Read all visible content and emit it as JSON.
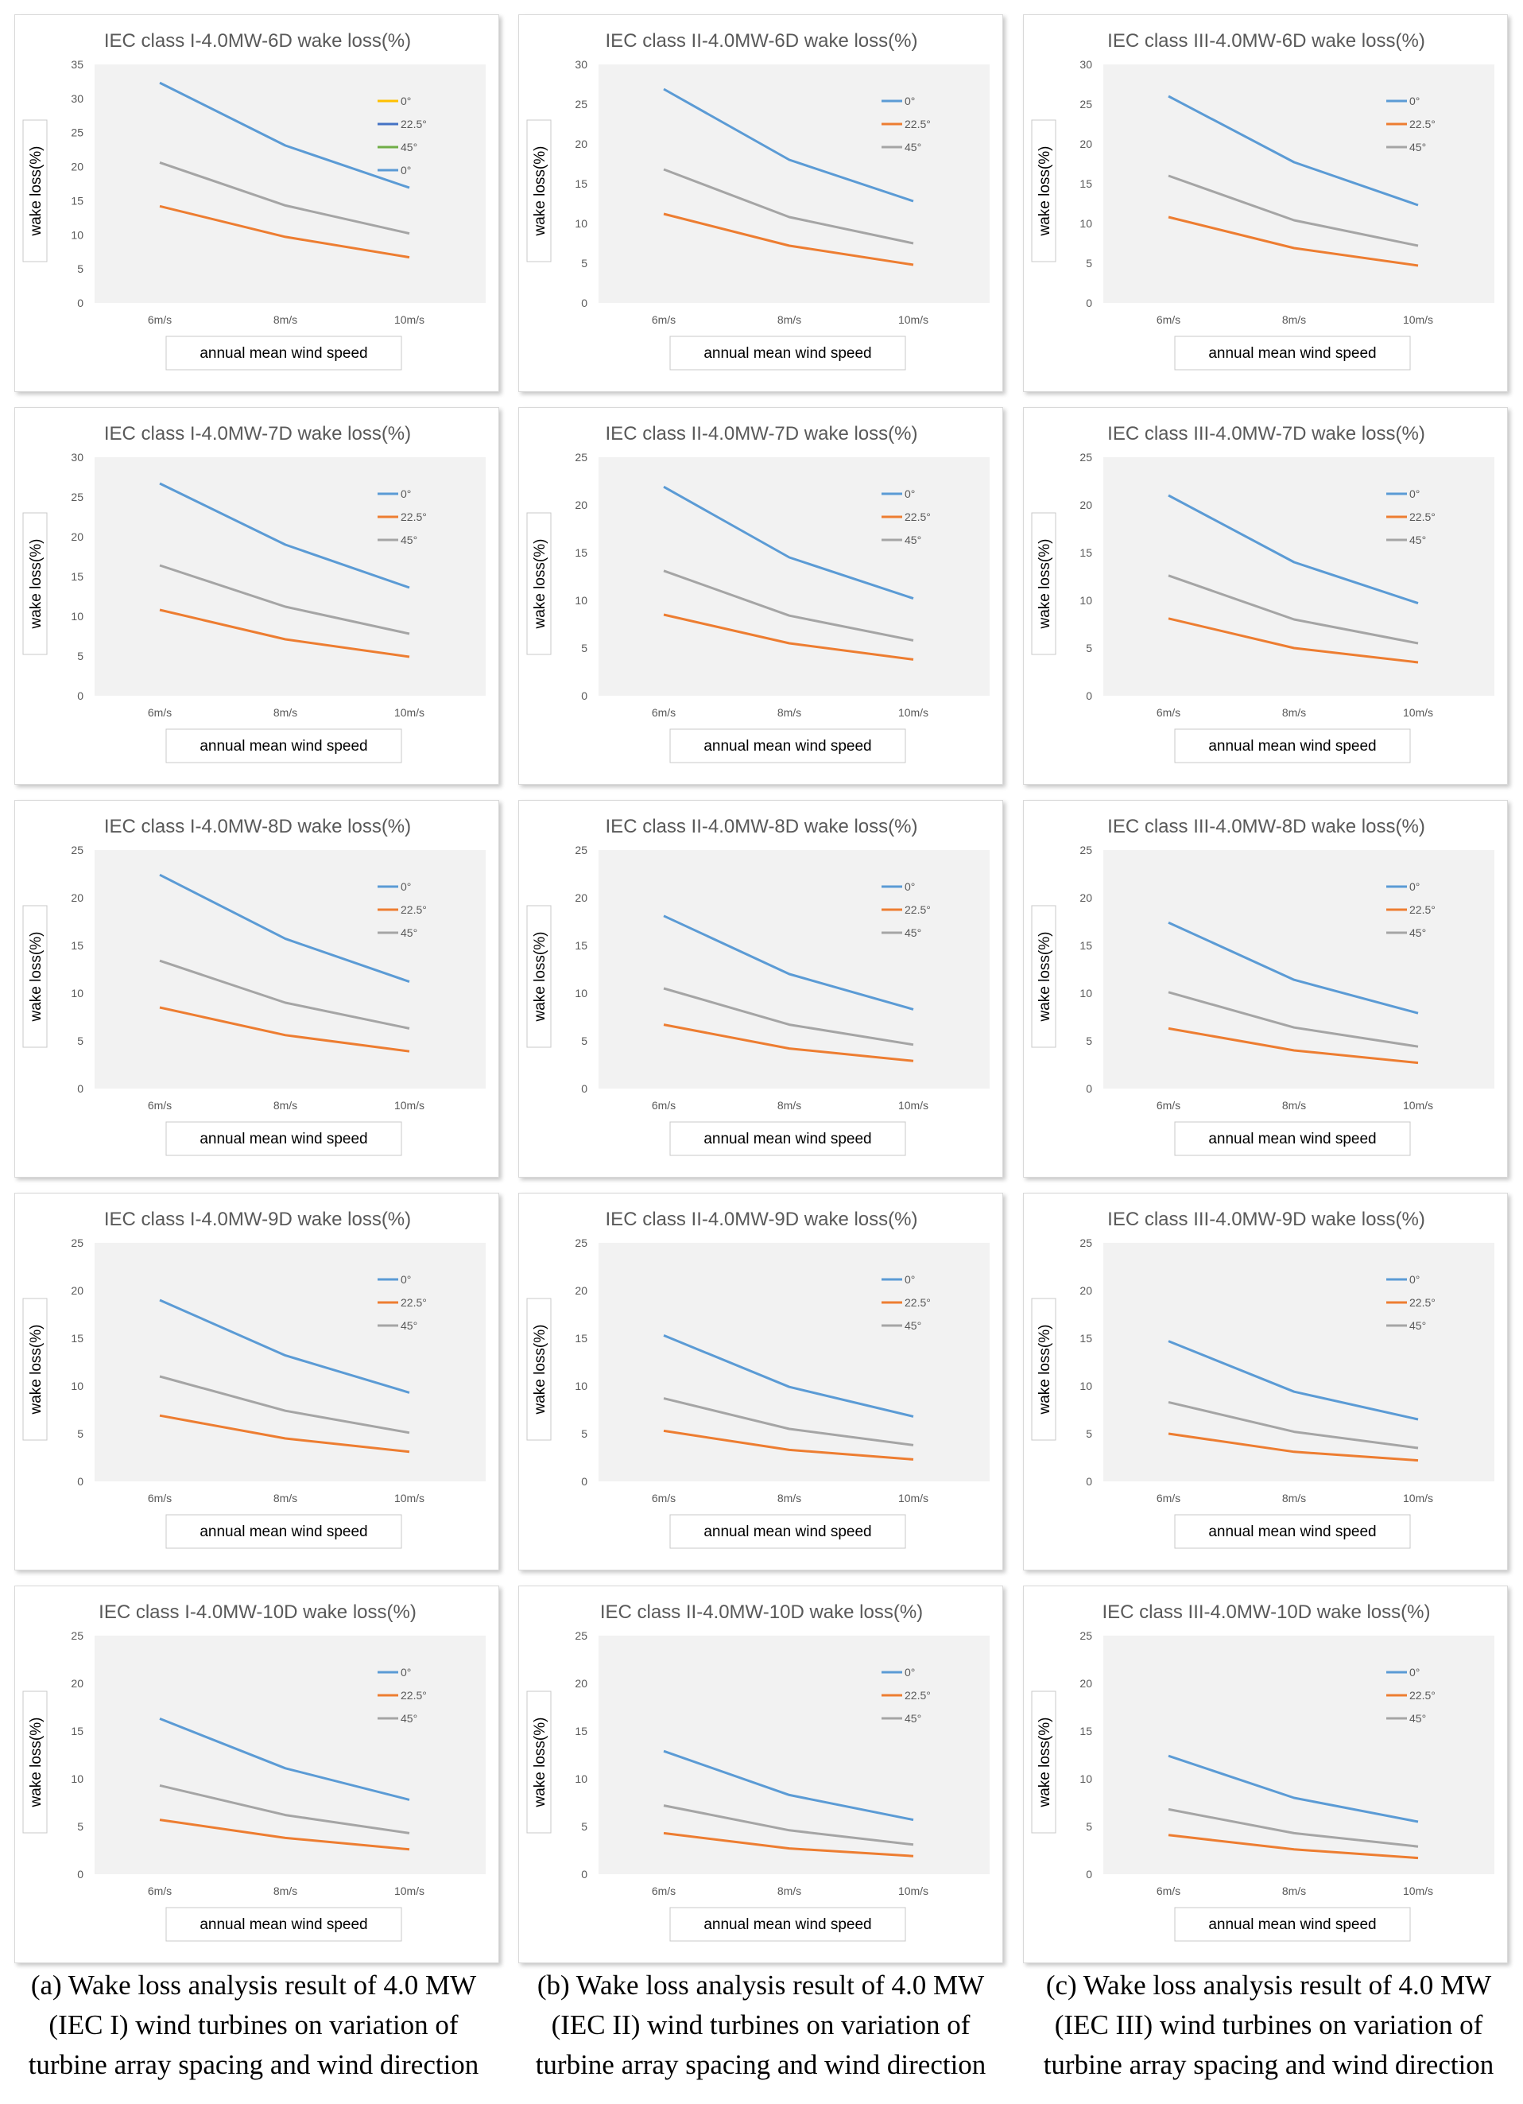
{
  "colors": {
    "0deg": "#5B9BD5",
    "22_5deg": "#ED7D31",
    "45deg": "#A5A5A5",
    "legend_extra_1": "#FFC000",
    "legend_extra_2": "#4472C4",
    "legend_extra_3": "#70AD47",
    "plot_bg": "#F2F2F2",
    "text": "#595959"
  },
  "chart_data": [
    {
      "type": "line",
      "title": "IEC class I-4.0MW-6D wake loss(%)",
      "xlabel": "annual mean wind speed",
      "ylabel": "wake loss(%)",
      "categories": [
        "6m/s",
        "8m/s",
        "10m/s"
      ],
      "ylim": [
        0,
        35
      ],
      "yticks": [
        "0",
        "5",
        "10",
        "15",
        "20",
        "25",
        "30",
        "35"
      ],
      "legend": [
        "0°",
        "22.5°",
        "45°",
        "0°"
      ],
      "legend_colors": [
        "#FFC000",
        "#4472C4",
        "#70AD47",
        "#5B9BD5"
      ],
      "series": [
        {
          "name": "0°",
          "color": "#5B9BD5",
          "values": [
            32.3,
            23.1,
            16.9
          ]
        },
        {
          "name": "22.5°",
          "color": "#ED7D31",
          "values": [
            14.2,
            9.7,
            6.7
          ]
        },
        {
          "name": "45°",
          "color": "#A5A5A5",
          "values": [
            20.6,
            14.3,
            10.2
          ]
        }
      ]
    },
    {
      "type": "line",
      "title": "IEC class II-4.0MW-6D wake loss(%)",
      "xlabel": "annual mean wind speed",
      "ylabel": "wake loss(%)",
      "categories": [
        "6m/s",
        "8m/s",
        "10m/s"
      ],
      "ylim": [
        0,
        30
      ],
      "yticks": [
        "0",
        "5",
        "10",
        "15",
        "20",
        "25",
        "30"
      ],
      "legend": [
        "0°",
        "22.5°",
        "45°"
      ],
      "legend_colors": [
        "#5B9BD5",
        "#ED7D31",
        "#A5A5A5"
      ],
      "series": [
        {
          "name": "0°",
          "color": "#5B9BD5",
          "values": [
            26.9,
            18.0,
            12.8
          ]
        },
        {
          "name": "22.5°",
          "color": "#ED7D31",
          "values": [
            11.2,
            7.2,
            4.8
          ]
        },
        {
          "name": "45°",
          "color": "#A5A5A5",
          "values": [
            16.8,
            10.8,
            7.5
          ]
        }
      ]
    },
    {
      "type": "line",
      "title": "IEC class III-4.0MW-6D wake loss(%)",
      "xlabel": "annual mean wind speed",
      "ylabel": "wake loss(%)",
      "categories": [
        "6m/s",
        "8m/s",
        "10m/s"
      ],
      "ylim": [
        0,
        30
      ],
      "yticks": [
        "0",
        "5",
        "10",
        "15",
        "20",
        "25",
        "30"
      ],
      "legend": [
        "0°",
        "22.5°",
        "45°"
      ],
      "legend_colors": [
        "#5B9BD5",
        "#ED7D31",
        "#A5A5A5"
      ],
      "series": [
        {
          "name": "0°",
          "color": "#5B9BD5",
          "values": [
            26.0,
            17.7,
            12.3
          ]
        },
        {
          "name": "22.5°",
          "color": "#ED7D31",
          "values": [
            10.8,
            6.9,
            4.7
          ]
        },
        {
          "name": "45°",
          "color": "#A5A5A5",
          "values": [
            16.0,
            10.4,
            7.2
          ]
        }
      ]
    },
    {
      "type": "line",
      "title": "IEC class I-4.0MW-7D wake loss(%)",
      "xlabel": "annual mean wind speed",
      "ylabel": "wake loss(%)",
      "categories": [
        "6m/s",
        "8m/s",
        "10m/s"
      ],
      "ylim": [
        0,
        30
      ],
      "yticks": [
        "0",
        "5",
        "10",
        "15",
        "20",
        "25",
        "30"
      ],
      "legend": [
        "0°",
        "22.5°",
        "45°"
      ],
      "legend_colors": [
        "#5B9BD5",
        "#ED7D31",
        "#A5A5A5"
      ],
      "series": [
        {
          "name": "0°",
          "color": "#5B9BD5",
          "values": [
            26.7,
            19.0,
            13.6
          ]
        },
        {
          "name": "22.5°",
          "color": "#ED7D31",
          "values": [
            10.8,
            7.1,
            4.9
          ]
        },
        {
          "name": "45°",
          "color": "#A5A5A5",
          "values": [
            16.4,
            11.2,
            7.8
          ]
        }
      ]
    },
    {
      "type": "line",
      "title": "IEC class II-4.0MW-7D wake loss(%)",
      "xlabel": "annual mean wind speed",
      "ylabel": "wake loss(%)",
      "categories": [
        "6m/s",
        "8m/s",
        "10m/s"
      ],
      "ylim": [
        0,
        25
      ],
      "yticks": [
        "0",
        "5",
        "10",
        "15",
        "20",
        "25"
      ],
      "legend": [
        "0°",
        "22.5°",
        "45°"
      ],
      "legend_colors": [
        "#5B9BD5",
        "#ED7D31",
        "#A5A5A5"
      ],
      "series": [
        {
          "name": "0°",
          "color": "#5B9BD5",
          "values": [
            21.9,
            14.5,
            10.2
          ]
        },
        {
          "name": "22.5°",
          "color": "#ED7D31",
          "values": [
            8.5,
            5.5,
            3.8
          ]
        },
        {
          "name": "45°",
          "color": "#A5A5A5",
          "values": [
            13.1,
            8.4,
            5.8
          ]
        }
      ]
    },
    {
      "type": "line",
      "title": "IEC class III-4.0MW-7D wake loss(%)",
      "xlabel": "annual mean wind speed",
      "ylabel": "wake loss(%)",
      "categories": [
        "6m/s",
        "8m/s",
        "10m/s"
      ],
      "ylim": [
        0,
        25
      ],
      "yticks": [
        "0",
        "5",
        "10",
        "15",
        "20",
        "25"
      ],
      "legend": [
        "0°",
        "22.5°",
        "45°"
      ],
      "legend_colors": [
        "#5B9BD5",
        "#ED7D31",
        "#A5A5A5"
      ],
      "series": [
        {
          "name": "0°",
          "color": "#5B9BD5",
          "values": [
            21.0,
            14.0,
            9.7
          ]
        },
        {
          "name": "22.5°",
          "color": "#ED7D31",
          "values": [
            8.1,
            5.0,
            3.5
          ]
        },
        {
          "name": "45°",
          "color": "#A5A5A5",
          "values": [
            12.6,
            8.0,
            5.5
          ]
        }
      ]
    },
    {
      "type": "line",
      "title": "IEC class I-4.0MW-8D wake loss(%)",
      "xlabel": "annual mean wind speed",
      "ylabel": "wake loss(%)",
      "categories": [
        "6m/s",
        "8m/s",
        "10m/s"
      ],
      "ylim": [
        0,
        25
      ],
      "yticks": [
        "0",
        "5",
        "10",
        "15",
        "20",
        "25"
      ],
      "legend": [
        "0°",
        "22.5°",
        "45°"
      ],
      "legend_colors": [
        "#5B9BD5",
        "#ED7D31",
        "#A5A5A5"
      ],
      "series": [
        {
          "name": "0°",
          "color": "#5B9BD5",
          "values": [
            22.4,
            15.7,
            11.2
          ]
        },
        {
          "name": "22.5°",
          "color": "#ED7D31",
          "values": [
            8.5,
            5.6,
            3.9
          ]
        },
        {
          "name": "45°",
          "color": "#A5A5A5",
          "values": [
            13.4,
            9.0,
            6.3
          ]
        }
      ]
    },
    {
      "type": "line",
      "title": "IEC class II-4.0MW-8D wake loss(%)",
      "xlabel": "annual mean wind speed",
      "ylabel": "wake loss(%)",
      "categories": [
        "6m/s",
        "8m/s",
        "10m/s"
      ],
      "ylim": [
        0,
        25
      ],
      "yticks": [
        "0",
        "5",
        "10",
        "15",
        "20",
        "25"
      ],
      "legend": [
        "0°",
        "22.5°",
        "45°"
      ],
      "legend_colors": [
        "#5B9BD5",
        "#ED7D31",
        "#A5A5A5"
      ],
      "series": [
        {
          "name": "0°",
          "color": "#5B9BD5",
          "values": [
            18.1,
            12.0,
            8.3
          ]
        },
        {
          "name": "22.5°",
          "color": "#ED7D31",
          "values": [
            6.7,
            4.2,
            2.9
          ]
        },
        {
          "name": "45°",
          "color": "#A5A5A5",
          "values": [
            10.5,
            6.7,
            4.6
          ]
        }
      ]
    },
    {
      "type": "line",
      "title": "IEC class III-4.0MW-8D wake loss(%)",
      "xlabel": "annual mean wind speed",
      "ylabel": "wake loss(%)",
      "categories": [
        "6m/s",
        "8m/s",
        "10m/s"
      ],
      "ylim": [
        0,
        25
      ],
      "yticks": [
        "0",
        "5",
        "10",
        "15",
        "20",
        "25"
      ],
      "legend": [
        "0°",
        "22.5°",
        "45°"
      ],
      "legend_colors": [
        "#5B9BD5",
        "#ED7D31",
        "#A5A5A5"
      ],
      "series": [
        {
          "name": "0°",
          "color": "#5B9BD5",
          "values": [
            17.4,
            11.4,
            7.9
          ]
        },
        {
          "name": "22.5°",
          "color": "#ED7D31",
          "values": [
            6.3,
            4.0,
            2.7
          ]
        },
        {
          "name": "45°",
          "color": "#A5A5A5",
          "values": [
            10.1,
            6.4,
            4.4
          ]
        }
      ]
    },
    {
      "type": "line",
      "title": "IEC class I-4.0MW-9D wake loss(%)",
      "xlabel": "annual mean wind speed",
      "ylabel": "wake loss(%)",
      "categories": [
        "6m/s",
        "8m/s",
        "10m/s"
      ],
      "ylim": [
        0,
        25
      ],
      "yticks": [
        "0",
        "5",
        "10",
        "15",
        "20",
        "25"
      ],
      "legend": [
        "0°",
        "22.5°",
        "45°"
      ],
      "legend_colors": [
        "#5B9BD5",
        "#ED7D31",
        "#A5A5A5"
      ],
      "series": [
        {
          "name": "0°",
          "color": "#5B9BD5",
          "values": [
            19.0,
            13.2,
            9.3
          ]
        },
        {
          "name": "22.5°",
          "color": "#ED7D31",
          "values": [
            6.9,
            4.5,
            3.1
          ]
        },
        {
          "name": "45°",
          "color": "#A5A5A5",
          "values": [
            11.0,
            7.4,
            5.1
          ]
        }
      ]
    },
    {
      "type": "line",
      "title": "IEC class II-4.0MW-9D wake loss(%)",
      "xlabel": "annual mean wind speed",
      "ylabel": "wake loss(%)",
      "categories": [
        "6m/s",
        "8m/s",
        "10m/s"
      ],
      "ylim": [
        0,
        25
      ],
      "yticks": [
        "0",
        "5",
        "10",
        "15",
        "20",
        "25"
      ],
      "legend": [
        "0°",
        "22.5°",
        "45°"
      ],
      "legend_colors": [
        "#5B9BD5",
        "#ED7D31",
        "#A5A5A5"
      ],
      "series": [
        {
          "name": "0°",
          "color": "#5B9BD5",
          "values": [
            15.3,
            9.9,
            6.8
          ]
        },
        {
          "name": "22.5°",
          "color": "#ED7D31",
          "values": [
            5.3,
            3.3,
            2.3
          ]
        },
        {
          "name": "45°",
          "color": "#A5A5A5",
          "values": [
            8.7,
            5.5,
            3.8
          ]
        }
      ]
    },
    {
      "type": "line",
      "title": "IEC class III-4.0MW-9D wake loss(%)",
      "xlabel": "annual mean wind speed",
      "ylabel": "wake loss(%)",
      "categories": [
        "6m/s",
        "8m/s",
        "10m/s"
      ],
      "ylim": [
        0,
        25
      ],
      "yticks": [
        "0",
        "5",
        "10",
        "15",
        "20",
        "25"
      ],
      "legend": [
        "0°",
        "22.5°",
        "45°"
      ],
      "legend_colors": [
        "#5B9BD5",
        "#ED7D31",
        "#A5A5A5"
      ],
      "series": [
        {
          "name": "0°",
          "color": "#5B9BD5",
          "values": [
            14.7,
            9.4,
            6.5
          ]
        },
        {
          "name": "22.5°",
          "color": "#ED7D31",
          "values": [
            5.0,
            3.1,
            2.2
          ]
        },
        {
          "name": "45°",
          "color": "#A5A5A5",
          "values": [
            8.3,
            5.2,
            3.5
          ]
        }
      ]
    },
    {
      "type": "line",
      "title": "IEC class I-4.0MW-10D wake loss(%)",
      "xlabel": "annual mean wind speed",
      "ylabel": "wake loss(%)",
      "categories": [
        "6m/s",
        "8m/s",
        "10m/s"
      ],
      "ylim": [
        0,
        25
      ],
      "yticks": [
        "0",
        "5",
        "10",
        "15",
        "20",
        "25"
      ],
      "legend": [
        "0°",
        "22.5°",
        "45°"
      ],
      "legend_colors": [
        "#5B9BD5",
        "#ED7D31",
        "#A5A5A5"
      ],
      "series": [
        {
          "name": "0°",
          "color": "#5B9BD5",
          "values": [
            16.3,
            11.1,
            7.8
          ]
        },
        {
          "name": "22.5°",
          "color": "#ED7D31",
          "values": [
            5.7,
            3.8,
            2.6
          ]
        },
        {
          "name": "45°",
          "color": "#A5A5A5",
          "values": [
            9.3,
            6.2,
            4.3
          ]
        }
      ]
    },
    {
      "type": "line",
      "title": "IEC class II-4.0MW-10D wake loss(%)",
      "xlabel": "annual mean wind speed",
      "ylabel": "wake loss(%)",
      "categories": [
        "6m/s",
        "8m/s",
        "10m/s"
      ],
      "ylim": [
        0,
        25
      ],
      "yticks": [
        "0",
        "5",
        "10",
        "15",
        "20",
        "25"
      ],
      "legend": [
        "0°",
        "22.5°",
        "45°"
      ],
      "legend_colors": [
        "#5B9BD5",
        "#ED7D31",
        "#A5A5A5"
      ],
      "series": [
        {
          "name": "0°",
          "color": "#5B9BD5",
          "values": [
            12.9,
            8.3,
            5.7
          ]
        },
        {
          "name": "22.5°",
          "color": "#ED7D31",
          "values": [
            4.3,
            2.7,
            1.9
          ]
        },
        {
          "name": "45°",
          "color": "#A5A5A5",
          "values": [
            7.2,
            4.6,
            3.1
          ]
        }
      ]
    },
    {
      "type": "line",
      "title": "IEC class III-4.0MW-10D wake loss(%)",
      "xlabel": "annual mean wind speed",
      "ylabel": "wake loss(%)",
      "categories": [
        "6m/s",
        "8m/s",
        "10m/s"
      ],
      "ylim": [
        0,
        25
      ],
      "yticks": [
        "0",
        "5",
        "10",
        "15",
        "20",
        "25"
      ],
      "legend": [
        "0°",
        "22.5°",
        "45°"
      ],
      "legend_colors": [
        "#5B9BD5",
        "#ED7D31",
        "#A5A5A5"
      ],
      "series": [
        {
          "name": "0°",
          "color": "#5B9BD5",
          "values": [
            12.4,
            8.0,
            5.5
          ]
        },
        {
          "name": "22.5°",
          "color": "#ED7D31",
          "values": [
            4.1,
            2.6,
            1.7
          ]
        },
        {
          "name": "45°",
          "color": "#A5A5A5",
          "values": [
            6.8,
            4.3,
            2.9
          ]
        }
      ]
    }
  ],
  "captions": [
    {
      "lines": [
        "(a) Wake loss analysis result of 4.0 MW",
        "(IEC I) wind turbines on variation of",
        "turbine array spacing and wind direction"
      ]
    },
    {
      "lines": [
        "(b) Wake loss analysis result of 4.0 MW",
        "(IEC II) wind turbines on variation of",
        "turbine array spacing and wind direction"
      ]
    },
    {
      "lines": [
        "(c) Wake loss analysis result of 4.0 MW",
        "(IEC III) wind turbines on variation of",
        "turbine array spacing and wind direction"
      ]
    }
  ]
}
